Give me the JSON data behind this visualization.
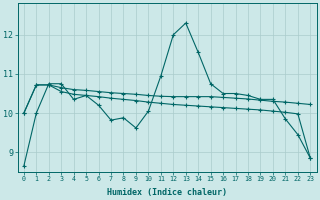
{
  "xlabel": "Humidex (Indice chaleur)",
  "bg_color": "#cce8e8",
  "grid_color": "#aacccc",
  "line_color": "#006666",
  "xlim": [
    -0.5,
    23.5
  ],
  "ylim": [
    8.5,
    12.8
  ],
  "yticks": [
    9,
    10,
    11,
    12
  ],
  "xticks": [
    0,
    1,
    2,
    3,
    4,
    5,
    6,
    7,
    8,
    9,
    10,
    11,
    12,
    13,
    14,
    15,
    16,
    17,
    18,
    19,
    20,
    21,
    22,
    23
  ],
  "line1_x": [
    0,
    1,
    2,
    3,
    4,
    5,
    6,
    7,
    8,
    9,
    10,
    11,
    12,
    13,
    14,
    15,
    16,
    17,
    18,
    19,
    20,
    21,
    22,
    23
  ],
  "line1_y": [
    8.65,
    10.0,
    10.75,
    10.75,
    10.35,
    10.45,
    10.2,
    9.82,
    9.88,
    9.62,
    10.05,
    10.95,
    12.0,
    12.3,
    11.55,
    10.75,
    10.5,
    10.5,
    10.45,
    10.35,
    10.35,
    9.85,
    9.45,
    8.85
  ],
  "line2_x": [
    0,
    1,
    2,
    3,
    4,
    5,
    6,
    7,
    8,
    9,
    10,
    11,
    12,
    13,
    14,
    15,
    16,
    17,
    18,
    19,
    20,
    21,
    22,
    23
  ],
  "line2_y": [
    10.0,
    10.72,
    10.72,
    10.65,
    10.6,
    10.58,
    10.55,
    10.52,
    10.5,
    10.48,
    10.45,
    10.43,
    10.42,
    10.42,
    10.42,
    10.42,
    10.4,
    10.38,
    10.36,
    10.33,
    10.3,
    10.28,
    10.25,
    10.22
  ],
  "line3_x": [
    0,
    1,
    2,
    3,
    4,
    5,
    6,
    7,
    8,
    9,
    10,
    11,
    12,
    13,
    14,
    15,
    16,
    17,
    18,
    19,
    20,
    21,
    22,
    23
  ],
  "line3_y": [
    10.0,
    10.72,
    10.72,
    10.55,
    10.48,
    10.45,
    10.42,
    10.38,
    10.35,
    10.32,
    10.28,
    10.25,
    10.22,
    10.2,
    10.18,
    10.16,
    10.14,
    10.12,
    10.1,
    10.08,
    10.05,
    10.02,
    9.98,
    8.85
  ]
}
